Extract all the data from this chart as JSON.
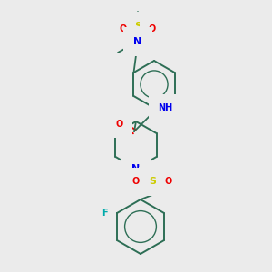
{
  "bg_color": "#ebebeb",
  "bond_color": "#2d6e55",
  "atom_colors": {
    "N": "#0000ee",
    "O": "#ee0000",
    "S": "#cccc00",
    "F": "#00aaaa",
    "C": "#2d6e55",
    "H": "#2d6e55"
  },
  "figsize": [
    3.0,
    3.0
  ],
  "dpi": 100
}
